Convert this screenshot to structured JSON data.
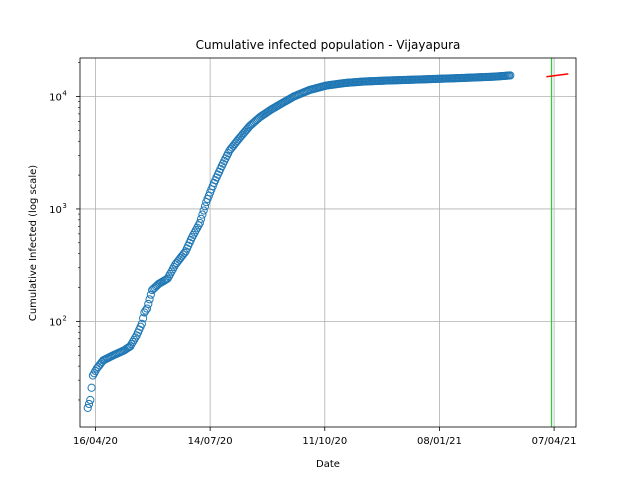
{
  "chart_data": {
    "type": "scatter",
    "title": "Cumulative infected population - Vijayapura",
    "xlabel": "Date",
    "ylabel": "Cumulative Infected (log scale)",
    "yscale": "log",
    "grid": true,
    "x_start_date": "2020-04-10",
    "xlim": [
      "2020-04-04",
      "2021-04-24"
    ],
    "ylim": [
      11.5,
      22000
    ],
    "x_ticks": [
      {
        "date": "2020-04-16",
        "label": "16/04/20"
      },
      {
        "date": "2020-07-14",
        "label": "14/07/20"
      },
      {
        "date": "2020-10-11",
        "label": "11/10/20"
      },
      {
        "date": "2021-01-08",
        "label": "08/01/21"
      },
      {
        "date": "2021-04-07",
        "label": "07/04/21"
      }
    ],
    "y_ticks": [
      {
        "value": 100,
        "label": "10",
        "exp": "2"
      },
      {
        "value": 1000,
        "label": "10",
        "exp": "3"
      },
      {
        "value": 10000,
        "label": "10",
        "exp": "4"
      }
    ],
    "series": [
      {
        "marker": "open-circle",
        "color": "#1f77b4",
        "anchors": [
          [
            0,
            17
          ],
          [
            2,
            20
          ],
          [
            4,
            33
          ],
          [
            7,
            38
          ],
          [
            12,
            45
          ],
          [
            20,
            50
          ],
          [
            28,
            55
          ],
          [
            33,
            60
          ],
          [
            38,
            75
          ],
          [
            42,
            95
          ],
          [
            44,
            120
          ],
          [
            46,
            130
          ],
          [
            50,
            190
          ],
          [
            55,
            215
          ],
          [
            62,
            240
          ],
          [
            68,
            320
          ],
          [
            76,
            420
          ],
          [
            81,
            560
          ],
          [
            87,
            750
          ],
          [
            92,
            1150
          ],
          [
            98,
            1700
          ],
          [
            104,
            2400
          ],
          [
            110,
            3300
          ],
          [
            118,
            4300
          ],
          [
            126,
            5500
          ],
          [
            134,
            6600
          ],
          [
            142,
            7600
          ],
          [
            150,
            8600
          ],
          [
            160,
            10000
          ],
          [
            172,
            11400
          ],
          [
            185,
            12500
          ],
          [
            200,
            13200
          ],
          [
            215,
            13600
          ],
          [
            235,
            13900
          ],
          [
            260,
            14200
          ],
          [
            290,
            14600
          ],
          [
            315,
            15000
          ],
          [
            322,
            15200
          ],
          [
            328,
            15400
          ]
        ]
      }
    ],
    "vline": {
      "date": "2021-04-05",
      "color": "#2ecc40"
    },
    "fit_line": {
      "x": [
        "2021-04-01",
        "2021-04-18"
      ],
      "y": [
        15000,
        15900
      ],
      "color": "#ff0000"
    }
  }
}
